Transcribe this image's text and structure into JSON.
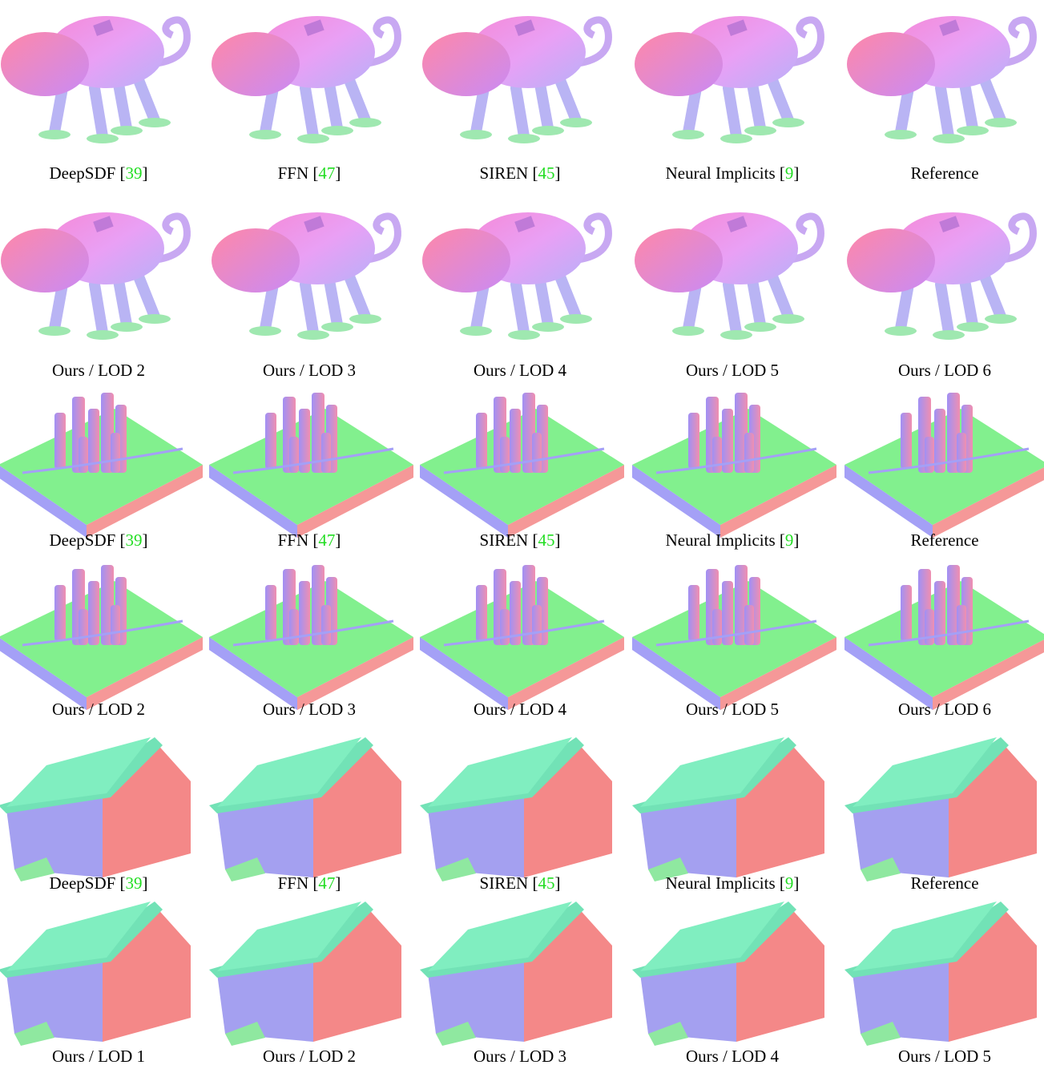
{
  "rows": [
    {
      "panels": [
        {
          "pre": "DeepSDF [",
          "cite": "39",
          "post": "]"
        },
        {
          "pre": "FFN [",
          "cite": "47",
          "post": "]"
        },
        {
          "pre": "SIREN [",
          "cite": "45",
          "post": "]"
        },
        {
          "pre": "Neural Implicits [",
          "cite": "9",
          "post": "]"
        },
        {
          "pre": "Reference"
        }
      ]
    },
    {
      "panels": [
        {
          "pre": "Ours / LOD 2"
        },
        {
          "pre": "Ours / LOD 3"
        },
        {
          "pre": "Ours / LOD 4"
        },
        {
          "pre": "Ours / LOD 5"
        },
        {
          "pre": "Ours / LOD 6"
        }
      ]
    },
    {
      "panels": [
        {
          "pre": "DeepSDF [",
          "cite": "39",
          "post": "]"
        },
        {
          "pre": "FFN [",
          "cite": "47",
          "post": "]"
        },
        {
          "pre": "SIREN [",
          "cite": "45",
          "post": "]"
        },
        {
          "pre": "Neural Implicits [",
          "cite": "9",
          "post": "]"
        },
        {
          "pre": "Reference"
        }
      ]
    },
    {
      "panels": [
        {
          "pre": "Ours / LOD 2"
        },
        {
          "pre": "Ours / LOD 3"
        },
        {
          "pre": "Ours / LOD 4"
        },
        {
          "pre": "Ours / LOD 5"
        },
        {
          "pre": "Ours / LOD 6"
        }
      ]
    },
    {
      "panels": [
        {
          "pre": "DeepSDF [",
          "cite": "39",
          "post": "]"
        },
        {
          "pre": "FFN [",
          "cite": "47",
          "post": "]"
        },
        {
          "pre": "SIREN [",
          "cite": "45",
          "post": "]"
        },
        {
          "pre": "Neural Implicits [",
          "cite": "9",
          "post": "]"
        },
        {
          "pre": "Reference"
        }
      ]
    },
    {
      "panels": [
        {
          "pre": "Ours / LOD 1"
        },
        {
          "pre": "Ours / LOD 2"
        },
        {
          "pre": "Ours / LOD 3"
        },
        {
          "pre": "Ours / LOD 4"
        },
        {
          "pre": "Ours / LOD 5"
        }
      ]
    }
  ]
}
